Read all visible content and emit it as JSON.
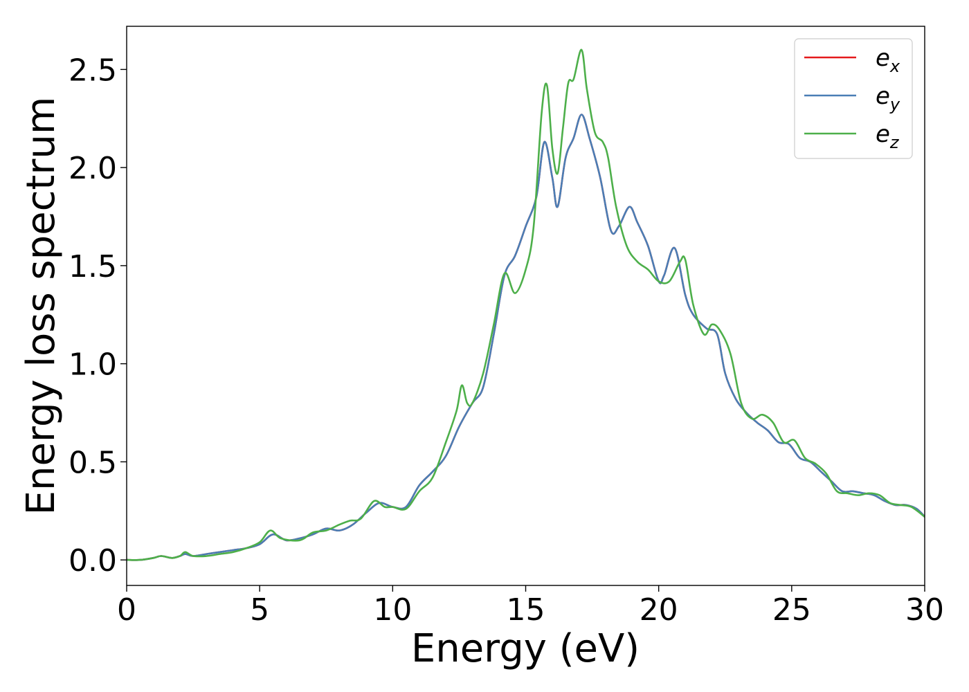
{
  "chart_data": {
    "type": "line",
    "xlabel": "Energy (eV)",
    "ylabel": "Energy loss spectrum",
    "xlim": [
      0,
      30
    ],
    "ylim": [
      -0.13,
      2.72
    ],
    "xticks": [
      0,
      5,
      10,
      15,
      20,
      25,
      30
    ],
    "xtick_labels": [
      "0",
      "5",
      "10",
      "15",
      "20",
      "25",
      "30"
    ],
    "yticks": [
      0.0,
      0.5,
      1.0,
      1.5,
      2.0,
      2.5
    ],
    "ytick_labels": [
      "0.0",
      "0.5",
      "1.0",
      "1.5",
      "2.0",
      "2.5"
    ],
    "grid": false,
    "legend_position": "top-right",
    "series": [
      {
        "name": "e",
        "subscript": "x",
        "color": "#e41a1c",
        "x": [
          0,
          0.5,
          1.0,
          1.3,
          1.7,
          2.0,
          2.2,
          2.5,
          3.0,
          3.5,
          4.0,
          4.5,
          5.0,
          5.5,
          6.0,
          6.5,
          7.0,
          7.5,
          8.0,
          8.5,
          9.0,
          9.5,
          10.0,
          10.5,
          11.0,
          11.5,
          12.0,
          12.5,
          13.0,
          13.4,
          13.8,
          14.2,
          14.6,
          15.0,
          15.4,
          15.7,
          16.0,
          16.2,
          16.5,
          16.8,
          17.1,
          17.4,
          17.8,
          18.2,
          18.5,
          18.9,
          19.2,
          19.6,
          20.0,
          20.2,
          20.6,
          21.0,
          21.3,
          21.8,
          22.2,
          22.5,
          22.9,
          23.3,
          23.7,
          24.1,
          24.5,
          24.9,
          25.3,
          25.7,
          26.1,
          26.5,
          26.9,
          27.3,
          27.7,
          28.1,
          28.5,
          28.9,
          29.3,
          29.7,
          30.0
        ],
        "y": [
          0.0,
          0.0,
          0.01,
          0.02,
          0.01,
          0.02,
          0.03,
          0.02,
          0.03,
          0.04,
          0.05,
          0.06,
          0.08,
          0.13,
          0.1,
          0.11,
          0.13,
          0.16,
          0.15,
          0.18,
          0.24,
          0.29,
          0.27,
          0.27,
          0.38,
          0.45,
          0.53,
          0.68,
          0.8,
          0.88,
          1.15,
          1.45,
          1.55,
          1.7,
          1.85,
          2.13,
          1.95,
          1.8,
          2.05,
          2.15,
          2.27,
          2.15,
          1.95,
          1.68,
          1.7,
          1.8,
          1.72,
          1.6,
          1.42,
          1.45,
          1.59,
          1.35,
          1.25,
          1.18,
          1.15,
          0.95,
          0.82,
          0.75,
          0.7,
          0.66,
          0.6,
          0.59,
          0.52,
          0.5,
          0.45,
          0.4,
          0.35,
          0.35,
          0.34,
          0.33,
          0.3,
          0.28,
          0.28,
          0.26,
          0.22
        ]
      },
      {
        "name": "e",
        "subscript": "y",
        "color": "#4a7eb5",
        "x": [
          0,
          0.5,
          1.0,
          1.3,
          1.7,
          2.0,
          2.2,
          2.5,
          3.0,
          3.5,
          4.0,
          4.5,
          5.0,
          5.5,
          6.0,
          6.5,
          7.0,
          7.5,
          8.0,
          8.5,
          9.0,
          9.5,
          10.0,
          10.5,
          11.0,
          11.5,
          12.0,
          12.5,
          13.0,
          13.4,
          13.8,
          14.2,
          14.6,
          15.0,
          15.4,
          15.7,
          16.0,
          16.2,
          16.5,
          16.8,
          17.1,
          17.4,
          17.8,
          18.2,
          18.5,
          18.9,
          19.2,
          19.6,
          20.0,
          20.2,
          20.6,
          21.0,
          21.3,
          21.8,
          22.2,
          22.5,
          22.9,
          23.3,
          23.7,
          24.1,
          24.5,
          24.9,
          25.3,
          25.7,
          26.1,
          26.5,
          26.9,
          27.3,
          27.7,
          28.1,
          28.5,
          28.9,
          29.3,
          29.7,
          30.0
        ],
        "y": [
          0.0,
          0.0,
          0.01,
          0.02,
          0.01,
          0.02,
          0.03,
          0.02,
          0.03,
          0.04,
          0.05,
          0.06,
          0.08,
          0.13,
          0.1,
          0.11,
          0.13,
          0.16,
          0.15,
          0.18,
          0.24,
          0.29,
          0.27,
          0.27,
          0.38,
          0.45,
          0.53,
          0.68,
          0.8,
          0.88,
          1.15,
          1.45,
          1.55,
          1.7,
          1.85,
          2.13,
          1.95,
          1.8,
          2.05,
          2.15,
          2.27,
          2.15,
          1.95,
          1.68,
          1.7,
          1.8,
          1.72,
          1.6,
          1.42,
          1.45,
          1.59,
          1.35,
          1.25,
          1.18,
          1.15,
          0.95,
          0.82,
          0.75,
          0.7,
          0.66,
          0.6,
          0.59,
          0.52,
          0.5,
          0.45,
          0.4,
          0.35,
          0.35,
          0.34,
          0.33,
          0.3,
          0.28,
          0.28,
          0.26,
          0.22
        ]
      },
      {
        "name": "e",
        "subscript": "z",
        "color": "#4daf4a",
        "x": [
          0,
          0.5,
          1.0,
          1.3,
          1.7,
          2.0,
          2.2,
          2.5,
          3.0,
          3.5,
          4.0,
          4.5,
          5.0,
          5.4,
          5.8,
          6.5,
          7.0,
          7.5,
          8.0,
          8.4,
          8.8,
          9.3,
          9.7,
          10.0,
          10.5,
          11.0,
          11.5,
          12.0,
          12.4,
          12.6,
          12.8,
          13.0,
          13.4,
          13.8,
          14.2,
          14.6,
          15.0,
          15.3,
          15.6,
          15.8,
          16.0,
          16.2,
          16.4,
          16.6,
          16.8,
          17.1,
          17.3,
          17.6,
          17.9,
          18.1,
          18.4,
          18.8,
          19.2,
          19.6,
          20.0,
          20.4,
          20.8,
          21.0,
          21.3,
          21.7,
          22.0,
          22.3,
          22.7,
          23.1,
          23.5,
          23.9,
          24.3,
          24.7,
          25.1,
          25.5,
          25.9,
          26.3,
          26.7,
          27.1,
          27.5,
          27.9,
          28.3,
          28.7,
          29.1,
          29.5,
          30.0
        ],
        "y": [
          0.0,
          0.0,
          0.01,
          0.02,
          0.01,
          0.02,
          0.04,
          0.02,
          0.02,
          0.03,
          0.04,
          0.06,
          0.09,
          0.15,
          0.11,
          0.1,
          0.14,
          0.15,
          0.18,
          0.2,
          0.21,
          0.3,
          0.27,
          0.27,
          0.26,
          0.35,
          0.42,
          0.6,
          0.76,
          0.89,
          0.8,
          0.8,
          0.95,
          1.2,
          1.46,
          1.36,
          1.48,
          1.7,
          2.28,
          2.42,
          2.1,
          1.97,
          2.2,
          2.43,
          2.45,
          2.6,
          2.4,
          2.18,
          2.13,
          2.05,
          1.8,
          1.6,
          1.52,
          1.48,
          1.42,
          1.42,
          1.52,
          1.53,
          1.3,
          1.15,
          1.2,
          1.17,
          1.05,
          0.8,
          0.72,
          0.74,
          0.7,
          0.6,
          0.61,
          0.52,
          0.49,
          0.44,
          0.35,
          0.34,
          0.33,
          0.34,
          0.33,
          0.29,
          0.28,
          0.27,
          0.22
        ]
      }
    ]
  }
}
